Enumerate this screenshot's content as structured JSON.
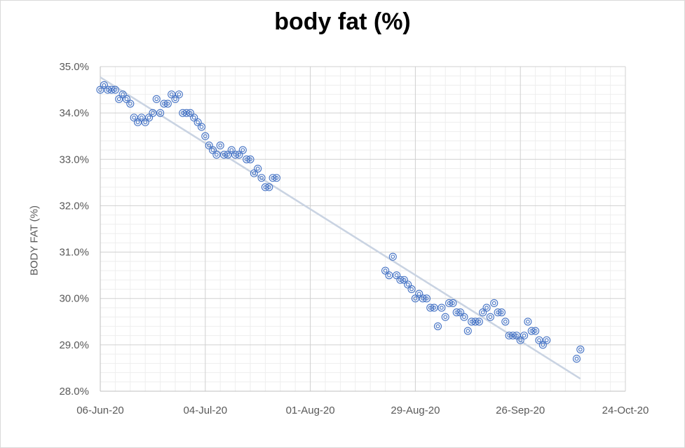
{
  "chart_data": {
    "type": "scatter",
    "title": "body fat (%)",
    "xlabel": "",
    "ylabel": "BODY FAT (%)",
    "xlim": [
      "2020-06-06",
      "2020-10-24"
    ],
    "ylim": [
      28.0,
      35.0
    ],
    "x_tick_labels": [
      "06-Jun-20",
      "04-Jul-20",
      "01-Aug-20",
      "29-Aug-20",
      "26-Sep-20",
      "24-Oct-20"
    ],
    "y_tick_labels": [
      "28.0%",
      "29.0%",
      "30.0%",
      "31.0%",
      "32.0%",
      "33.0%",
      "34.0%",
      "35.0%"
    ],
    "grid": true,
    "legend": "none",
    "series": [
      {
        "name": "body fat (%)",
        "marker": "double-circle",
        "color": "#4472c4",
        "points": [
          [
            "2020-06-06",
            34.5
          ],
          [
            "2020-06-07",
            34.6
          ],
          [
            "2020-06-08",
            34.5
          ],
          [
            "2020-06-09",
            34.5
          ],
          [
            "2020-06-10",
            34.5
          ],
          [
            "2020-06-11",
            34.3
          ],
          [
            "2020-06-12",
            34.4
          ],
          [
            "2020-06-13",
            34.3
          ],
          [
            "2020-06-14",
            34.2
          ],
          [
            "2020-06-15",
            33.9
          ],
          [
            "2020-06-16",
            33.8
          ],
          [
            "2020-06-17",
            33.9
          ],
          [
            "2020-06-18",
            33.8
          ],
          [
            "2020-06-19",
            33.9
          ],
          [
            "2020-06-20",
            34.0
          ],
          [
            "2020-06-21",
            34.3
          ],
          [
            "2020-06-22",
            34.0
          ],
          [
            "2020-06-23",
            34.2
          ],
          [
            "2020-06-24",
            34.2
          ],
          [
            "2020-06-25",
            34.4
          ],
          [
            "2020-06-26",
            34.3
          ],
          [
            "2020-06-27",
            34.4
          ],
          [
            "2020-06-28",
            34.0
          ],
          [
            "2020-06-29",
            34.0
          ],
          [
            "2020-06-30",
            34.0
          ],
          [
            "2020-07-01",
            33.9
          ],
          [
            "2020-07-02",
            33.8
          ],
          [
            "2020-07-03",
            33.7
          ],
          [
            "2020-07-04",
            33.5
          ],
          [
            "2020-07-05",
            33.3
          ],
          [
            "2020-07-06",
            33.2
          ],
          [
            "2020-07-07",
            33.1
          ],
          [
            "2020-07-08",
            33.3
          ],
          [
            "2020-07-09",
            33.1
          ],
          [
            "2020-07-10",
            33.1
          ],
          [
            "2020-07-11",
            33.2
          ],
          [
            "2020-07-12",
            33.1
          ],
          [
            "2020-07-13",
            33.1
          ],
          [
            "2020-07-14",
            33.2
          ],
          [
            "2020-07-15",
            33.0
          ],
          [
            "2020-07-16",
            33.0
          ],
          [
            "2020-07-17",
            32.7
          ],
          [
            "2020-07-18",
            32.8
          ],
          [
            "2020-07-19",
            32.6
          ],
          [
            "2020-07-20",
            32.4
          ],
          [
            "2020-07-21",
            32.4
          ],
          [
            "2020-07-22",
            32.6
          ],
          [
            "2020-07-23",
            32.6
          ],
          [
            "2020-08-21",
            30.6
          ],
          [
            "2020-08-22",
            30.5
          ],
          [
            "2020-08-23",
            30.9
          ],
          [
            "2020-08-24",
            30.5
          ],
          [
            "2020-08-25",
            30.4
          ],
          [
            "2020-08-26",
            30.4
          ],
          [
            "2020-08-27",
            30.3
          ],
          [
            "2020-08-28",
            30.2
          ],
          [
            "2020-08-29",
            30.0
          ],
          [
            "2020-08-30",
            30.1
          ],
          [
            "2020-08-31",
            30.0
          ],
          [
            "2020-09-01",
            30.0
          ],
          [
            "2020-09-02",
            29.8
          ],
          [
            "2020-09-03",
            29.8
          ],
          [
            "2020-09-04",
            29.4
          ],
          [
            "2020-09-05",
            29.8
          ],
          [
            "2020-09-06",
            29.6
          ],
          [
            "2020-09-07",
            29.9
          ],
          [
            "2020-09-08",
            29.9
          ],
          [
            "2020-09-09",
            29.7
          ],
          [
            "2020-09-10",
            29.7
          ],
          [
            "2020-09-11",
            29.6
          ],
          [
            "2020-09-12",
            29.3
          ],
          [
            "2020-09-13",
            29.5
          ],
          [
            "2020-09-14",
            29.5
          ],
          [
            "2020-09-15",
            29.5
          ],
          [
            "2020-09-16",
            29.7
          ],
          [
            "2020-09-17",
            29.8
          ],
          [
            "2020-09-18",
            29.6
          ],
          [
            "2020-09-19",
            29.9
          ],
          [
            "2020-09-20",
            29.7
          ],
          [
            "2020-09-21",
            29.7
          ],
          [
            "2020-09-22",
            29.5
          ],
          [
            "2020-09-23",
            29.2
          ],
          [
            "2020-09-24",
            29.2
          ],
          [
            "2020-09-25",
            29.2
          ],
          [
            "2020-09-26",
            29.1
          ],
          [
            "2020-09-27",
            29.2
          ],
          [
            "2020-09-28",
            29.5
          ],
          [
            "2020-09-29",
            29.3
          ],
          [
            "2020-09-30",
            29.3
          ],
          [
            "2020-10-01",
            29.1
          ],
          [
            "2020-10-02",
            29.0
          ],
          [
            "2020-10-03",
            29.1
          ],
          [
            "2020-10-11",
            28.7
          ],
          [
            "2020-10-12",
            28.9
          ]
        ]
      }
    ],
    "trendline": {
      "type": "linear",
      "color": "#c9d3e2",
      "start": [
        "2020-06-06",
        34.77
      ],
      "end": [
        "2020-10-12",
        28.27
      ]
    }
  }
}
